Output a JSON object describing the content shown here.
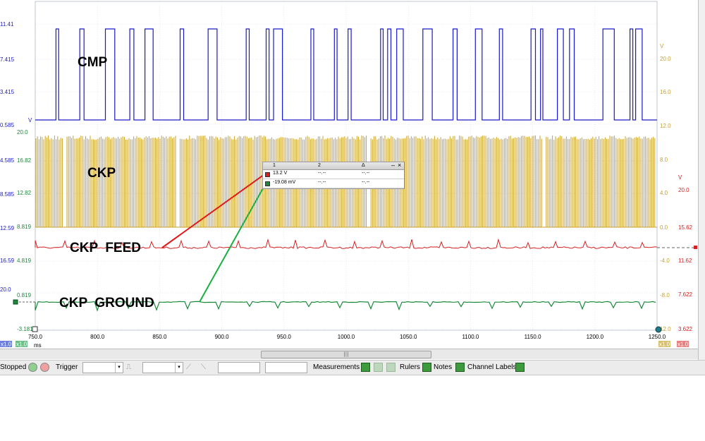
{
  "channels": {
    "cmp": {
      "label": "CMP",
      "color": "#1a1acc"
    },
    "ckp": {
      "label": "CKP",
      "color": "#c8a02a"
    },
    "feed": {
      "label": "CKP  FEED",
      "color": "#d42020"
    },
    "ground": {
      "label": "CKP  GROUND",
      "color": "#1a8a3a"
    }
  },
  "left_axis_blue": [
    "11.41",
    "7.415",
    "3.415",
    "0.585",
    "4.585",
    "8.585",
    "12.59",
    "16.59",
    "20.0"
  ],
  "left_axis_blue_unit": "V",
  "left_axis_green": [
    "20.0",
    "16.82",
    "12.82",
    "8.819",
    "4.819",
    "0.819",
    "-3.181"
  ],
  "right_axis_yellow": [
    "20.0",
    "16.0",
    "12.0",
    "8.0",
    "4.0",
    "0.0",
    "-4.0",
    "-8.0",
    "12.0"
  ],
  "right_axis_yellow_unit": "V",
  "right_axis_red": [
    "20.0",
    "15.62",
    "11.62",
    "7.622",
    "3.622"
  ],
  "right_axis_red_unit": "V",
  "x_axis": {
    "ticks": [
      "750.0",
      "800.0",
      "850.0",
      "900.0",
      "950.0",
      "1000.0",
      "1050.0",
      "1100.0",
      "1150.0",
      "1200.0",
      "1250.0"
    ],
    "unit": "ms"
  },
  "zoom_badges": {
    "left_a": "x1.0",
    "left_b": "x1.0",
    "right_a": "x1.0",
    "right_b": "x1.0"
  },
  "readout": {
    "headers": [
      "1",
      "2",
      "Δ"
    ],
    "rows": [
      {
        "col1": "13.2 V",
        "col2": "--.--",
        "col3": "--.--"
      },
      {
        "col1": "-19.08 mV",
        "col2": "--.--",
        "col3": "--.--"
      }
    ],
    "min_glyph": "–",
    "close_glyph": "×"
  },
  "scroll_thumb_glyph": "|||",
  "toolbar": {
    "status": "Stopped",
    "trigger_label": "Trigger",
    "measurements_label": "Measurements",
    "rulers_label": "Rulers",
    "notes_label": "Notes",
    "channel_labels_label": "Channel Labels"
  }
}
